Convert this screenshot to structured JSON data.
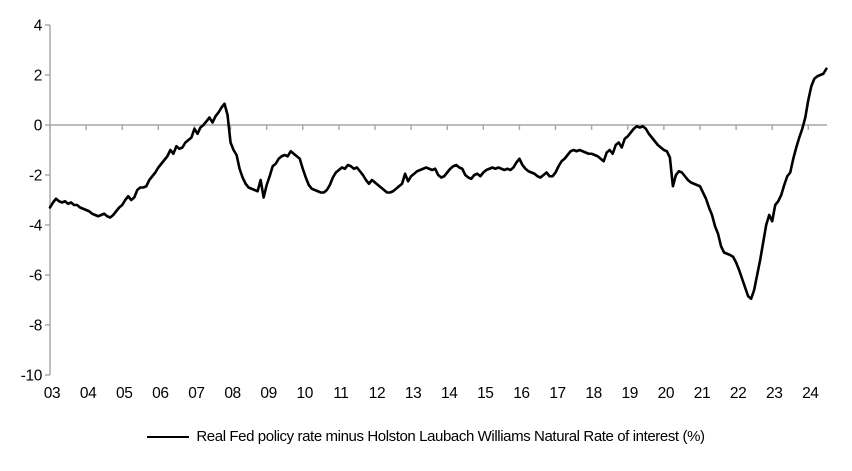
{
  "chart_data": {
    "type": "line",
    "title": "",
    "legend_position": "bottom-center",
    "grid": "zero-line-only",
    "axis_color": "#a6a6a6",
    "background_color": "#ffffff",
    "xlabel": "",
    "ylabel": "",
    "ylim": [
      -10,
      4
    ],
    "ytick_step": 2,
    "y_tick_labels": [
      "4",
      "2",
      "0",
      "-2",
      "-4",
      "-6",
      "-8",
      "-10"
    ],
    "x_tick_labels": [
      "03",
      "04",
      "05",
      "06",
      "07",
      "08",
      "09",
      "10",
      "11",
      "12",
      "13",
      "14",
      "15",
      "16",
      "17",
      "18",
      "19",
      "20",
      "21",
      "22",
      "23",
      "24"
    ],
    "series": [
      {
        "name": "Real Fed policy rate minus Holston Laubach Williams Natural Rate of interest (%)",
        "color": "#000000",
        "frequency": "monthly",
        "start": "2003-01",
        "end": "2024-07",
        "values": [
          -3.3,
          -3.1,
          -2.95,
          -3.05,
          -3.1,
          -3.05,
          -3.15,
          -3.1,
          -3.2,
          -3.2,
          -3.3,
          -3.35,
          -3.4,
          -3.45,
          -3.55,
          -3.6,
          -3.65,
          -3.6,
          -3.55,
          -3.65,
          -3.7,
          -3.6,
          -3.45,
          -3.3,
          -3.2,
          -3.0,
          -2.85,
          -3.0,
          -2.9,
          -2.6,
          -2.5,
          -2.5,
          -2.45,
          -2.2,
          -2.05,
          -1.9,
          -1.7,
          -1.55,
          -1.4,
          -1.25,
          -1.0,
          -1.15,
          -0.85,
          -0.95,
          -0.9,
          -0.7,
          -0.6,
          -0.5,
          -0.15,
          -0.35,
          -0.1,
          0.0,
          0.15,
          0.3,
          0.1,
          0.35,
          0.5,
          0.7,
          0.85,
          0.4,
          -0.7,
          -1.0,
          -1.2,
          -1.75,
          -2.1,
          -2.35,
          -2.5,
          -2.55,
          -2.6,
          -2.65,
          -2.2,
          -2.9,
          -2.4,
          -2.05,
          -1.65,
          -1.55,
          -1.35,
          -1.25,
          -1.2,
          -1.25,
          -1.05,
          -1.15,
          -1.25,
          -1.35,
          -1.75,
          -2.1,
          -2.4,
          -2.55,
          -2.6,
          -2.65,
          -2.7,
          -2.7,
          -2.6,
          -2.4,
          -2.1,
          -1.9,
          -1.8,
          -1.7,
          -1.75,
          -1.6,
          -1.65,
          -1.75,
          -1.7,
          -1.85,
          -2.0,
          -2.2,
          -2.35,
          -2.2,
          -2.3,
          -2.4,
          -2.5,
          -2.6,
          -2.7,
          -2.7,
          -2.65,
          -2.55,
          -2.45,
          -2.35,
          -1.95,
          -2.25,
          -2.05,
          -1.95,
          -1.85,
          -1.8,
          -1.75,
          -1.7,
          -1.75,
          -1.8,
          -1.75,
          -2.0,
          -2.1,
          -2.05,
          -1.9,
          -1.75,
          -1.65,
          -1.6,
          -1.7,
          -1.75,
          -2.0,
          -2.1,
          -2.15,
          -2.0,
          -1.95,
          -2.05,
          -1.9,
          -1.8,
          -1.75,
          -1.7,
          -1.75,
          -1.7,
          -1.75,
          -1.8,
          -1.75,
          -1.8,
          -1.7,
          -1.5,
          -1.35,
          -1.6,
          -1.75,
          -1.85,
          -1.9,
          -1.95,
          -2.05,
          -2.1,
          -2.0,
          -1.9,
          -2.05,
          -2.05,
          -1.9,
          -1.65,
          -1.45,
          -1.35,
          -1.2,
          -1.05,
          -1.0,
          -1.05,
          -1.0,
          -1.05,
          -1.1,
          -1.15,
          -1.15,
          -1.2,
          -1.25,
          -1.35,
          -1.45,
          -1.1,
          -1.0,
          -1.15,
          -0.8,
          -0.7,
          -0.9,
          -0.55,
          -0.45,
          -0.3,
          -0.15,
          -0.05,
          -0.1,
          -0.05,
          -0.15,
          -0.35,
          -0.5,
          -0.65,
          -0.8,
          -0.9,
          -1.0,
          -1.05,
          -1.3,
          -2.45,
          -2.0,
          -1.85,
          -1.9,
          -2.05,
          -2.2,
          -2.3,
          -2.35,
          -2.4,
          -2.45,
          -2.7,
          -2.95,
          -3.3,
          -3.6,
          -4.05,
          -4.35,
          -4.85,
          -5.1,
          -5.15,
          -5.2,
          -5.27,
          -5.5,
          -5.8,
          -6.15,
          -6.5,
          -6.85,
          -6.95,
          -6.6,
          -6.0,
          -5.4,
          -4.7,
          -4.0,
          -3.6,
          -3.85,
          -3.2,
          -3.05,
          -2.8,
          -2.4,
          -2.05,
          -1.9,
          -1.35,
          -0.9,
          -0.5,
          -0.15,
          0.3,
          1.0,
          1.55,
          1.85,
          1.95,
          2.0,
          2.05,
          2.25
        ]
      }
    ]
  }
}
